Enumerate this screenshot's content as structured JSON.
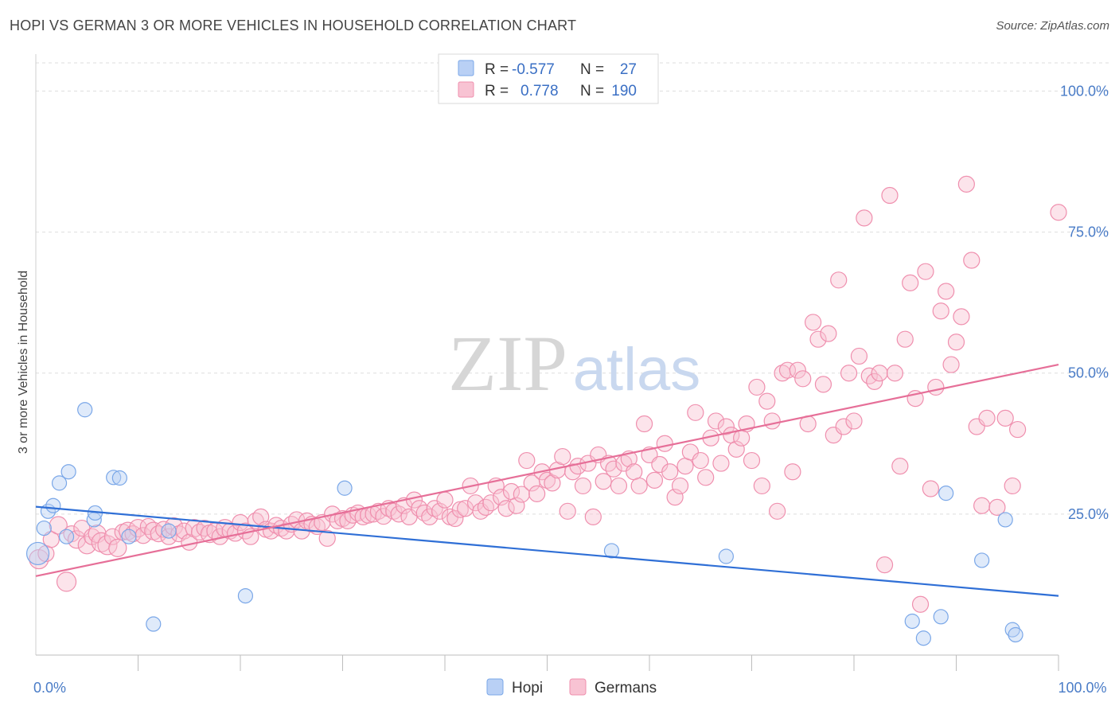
{
  "title": "HOPI VS GERMAN 3 OR MORE VEHICLES IN HOUSEHOLD CORRELATION CHART",
  "source": "Source: ZipAtlas.com",
  "watermark": {
    "zip": "ZIP",
    "atlas": "atlas"
  },
  "legend": {
    "r_label": "R =",
    "n_label": "N =",
    "rows": [
      {
        "series": "Hopi",
        "r": "-0.577",
        "n": "27",
        "color": "#7aa7e8",
        "fill": "#b9d0f5"
      },
      {
        "series": "Germans",
        "r": "0.778",
        "n": "190",
        "color": "#ef8fae",
        "fill": "#f8c3d3"
      }
    ]
  },
  "chart_data": {
    "type": "scatter",
    "title": "HOPI VS GERMAN 3 OR MORE VEHICLES IN HOUSEHOLD CORRELATION CHART",
    "xlabel": "",
    "ylabel": "3 or more Vehicles in Household",
    "xlim": [
      0,
      100
    ],
    "ylim": [
      0,
      105
    ],
    "y_ticks": [
      {
        "value": 25,
        "label": "25.0%"
      },
      {
        "value": 50,
        "label": "50.0%"
      },
      {
        "value": 75,
        "label": "75.0%"
      },
      {
        "value": 100,
        "label": "100.0%"
      }
    ],
    "x_tick_labels": [
      {
        "value": 0,
        "label": "0.0%"
      },
      {
        "value": 100,
        "label": "100.0%"
      }
    ],
    "x_minor_ticks": [
      10,
      20,
      30,
      40,
      50,
      60,
      70,
      80,
      90,
      100
    ],
    "grid": true,
    "legend_position": "top-center",
    "series": [
      {
        "name": "Hopi",
        "color": "#7aa7e8",
        "fill": "#b9d0f5",
        "line_color": "#2f6fd6",
        "trend": {
          "x": [
            0,
            100
          ],
          "y": [
            26.3,
            10.5
          ]
        },
        "points": [
          [
            0.2,
            18.0,
            14
          ],
          [
            0.8,
            22.5,
            9
          ],
          [
            1.2,
            25.5,
            9
          ],
          [
            1.7,
            26.5,
            9
          ],
          [
            2.3,
            30.5,
            9
          ],
          [
            3.0,
            21.0,
            9
          ],
          [
            3.2,
            32.5,
            9
          ],
          [
            4.8,
            43.5,
            9
          ],
          [
            5.7,
            24.0,
            9
          ],
          [
            5.8,
            25.2,
            9
          ],
          [
            7.6,
            31.5,
            9
          ],
          [
            8.2,
            31.4,
            9
          ],
          [
            9.1,
            21.0,
            9
          ],
          [
            11.5,
            5.5,
            9
          ],
          [
            13.0,
            22.0,
            9
          ],
          [
            20.5,
            10.5,
            9
          ],
          [
            30.2,
            29.6,
            9
          ],
          [
            56.3,
            18.5,
            9
          ],
          [
            67.5,
            17.5,
            9
          ],
          [
            85.7,
            6.0,
            9
          ],
          [
            86.8,
            3.0,
            9
          ],
          [
            88.5,
            6.8,
            9
          ],
          [
            89.0,
            28.7,
            9
          ],
          [
            92.5,
            16.8,
            9
          ],
          [
            94.8,
            24.0,
            9
          ],
          [
            95.5,
            4.5,
            9
          ],
          [
            95.8,
            3.6,
            9
          ]
        ]
      },
      {
        "name": "Germans",
        "color": "#ef8fae",
        "fill": "#f8c3d3",
        "line_color": "#e66f98",
        "trend": {
          "x": [
            0,
            100
          ],
          "y": [
            14.0,
            51.5
          ]
        },
        "points": [
          [
            0.3,
            17.0,
            12
          ],
          [
            1.0,
            18.0,
            10
          ],
          [
            1.5,
            20.5,
            10
          ],
          [
            2.2,
            23.0,
            11
          ],
          [
            3.0,
            13.0,
            12
          ],
          [
            3.5,
            21.5,
            10
          ],
          [
            4.0,
            20.5,
            11
          ],
          [
            4.5,
            22.5,
            10
          ],
          [
            5.0,
            19.5,
            11
          ],
          [
            5.5,
            21.0,
            10
          ],
          [
            6.0,
            21.5,
            11
          ],
          [
            6.4,
            20.0,
            12
          ],
          [
            7.0,
            19.5,
            12
          ],
          [
            7.5,
            21.0,
            10
          ],
          [
            8.0,
            19.0,
            11
          ],
          [
            8.5,
            21.8,
            10
          ],
          [
            9.0,
            22.0,
            11
          ],
          [
            9.5,
            21.5,
            10
          ],
          [
            10.0,
            22.5,
            11
          ],
          [
            10.5,
            21.2,
            10
          ],
          [
            11.0,
            22.8,
            10
          ],
          [
            11.5,
            22.0,
            11
          ],
          [
            12.0,
            21.5,
            10
          ],
          [
            12.5,
            22.3,
            10
          ],
          [
            13.0,
            21.0,
            10
          ],
          [
            13.5,
            22.8,
            11
          ],
          [
            14.0,
            21.5,
            10
          ],
          [
            14.5,
            22.0,
            10
          ],
          [
            15.0,
            20.0,
            10
          ],
          [
            15.5,
            22.5,
            11
          ],
          [
            16.0,
            21.8,
            10
          ],
          [
            16.5,
            22.5,
            10
          ],
          [
            17.0,
            21.5,
            11
          ],
          [
            17.5,
            22.0,
            10
          ],
          [
            18.0,
            21.0,
            10
          ],
          [
            18.5,
            22.5,
            11
          ],
          [
            19.0,
            22.0,
            10
          ],
          [
            19.5,
            21.6,
            10
          ],
          [
            20.0,
            23.5,
            10
          ],
          [
            20.5,
            22.0,
            10
          ],
          [
            21.0,
            21.0,
            10
          ],
          [
            21.5,
            23.8,
            10
          ],
          [
            22.0,
            24.5,
            10
          ],
          [
            22.5,
            22.3,
            10
          ],
          [
            23.0,
            22.0,
            10
          ],
          [
            23.5,
            23.0,
            10
          ],
          [
            24.0,
            22.5,
            10
          ],
          [
            24.5,
            22.0,
            10
          ],
          [
            25.0,
            23.2,
            10
          ],
          [
            25.5,
            24.0,
            10
          ],
          [
            26.0,
            22.0,
            10
          ],
          [
            26.5,
            23.8,
            10
          ],
          [
            27.0,
            23.2,
            10
          ],
          [
            27.5,
            22.8,
            10
          ],
          [
            28.0,
            23.5,
            10
          ],
          [
            28.5,
            20.7,
            10
          ],
          [
            29.0,
            25.0,
            10
          ],
          [
            29.5,
            23.8,
            10
          ],
          [
            30.0,
            24.2,
            10
          ],
          [
            30.5,
            23.8,
            10
          ],
          [
            31.0,
            24.8,
            10
          ],
          [
            31.5,
            25.2,
            10
          ],
          [
            32.0,
            24.5,
            10
          ],
          [
            32.5,
            24.8,
            10
          ],
          [
            33.0,
            25.0,
            10
          ],
          [
            33.5,
            25.5,
            10
          ],
          [
            34.0,
            24.6,
            10
          ],
          [
            34.5,
            26.0,
            10
          ],
          [
            35.0,
            25.5,
            10
          ],
          [
            35.5,
            25.0,
            10
          ],
          [
            36.0,
            26.5,
            10
          ],
          [
            36.5,
            24.5,
            10
          ],
          [
            37.0,
            27.5,
            10
          ],
          [
            37.5,
            26.0,
            10
          ],
          [
            38.0,
            25.2,
            10
          ],
          [
            38.5,
            24.5,
            10
          ],
          [
            39.0,
            26.0,
            10
          ],
          [
            39.5,
            25.5,
            10
          ],
          [
            40.0,
            27.5,
            10
          ],
          [
            40.5,
            24.5,
            10
          ],
          [
            41.0,
            24.2,
            10
          ],
          [
            41.5,
            25.8,
            10
          ],
          [
            42.0,
            26.0,
            10
          ],
          [
            42.5,
            30.0,
            10
          ],
          [
            43.0,
            27.0,
            10
          ],
          [
            43.5,
            25.5,
            10
          ],
          [
            44.0,
            26.2,
            10
          ],
          [
            44.5,
            27.0,
            10
          ],
          [
            45.0,
            30.0,
            10
          ],
          [
            45.5,
            28.0,
            10
          ],
          [
            46.0,
            26.0,
            10
          ],
          [
            46.5,
            29.0,
            10
          ],
          [
            47.0,
            26.5,
            10
          ],
          [
            47.5,
            28.5,
            10
          ],
          [
            48.0,
            34.5,
            10
          ],
          [
            48.5,
            30.5,
            10
          ],
          [
            49.0,
            28.6,
            10
          ],
          [
            49.5,
            32.5,
            10
          ],
          [
            50.0,
            31.0,
            10
          ],
          [
            50.5,
            30.5,
            10
          ],
          [
            51.0,
            32.8,
            10
          ],
          [
            51.5,
            35.2,
            10
          ],
          [
            52.0,
            25.5,
            10
          ],
          [
            52.5,
            32.5,
            10
          ],
          [
            53.0,
            33.5,
            10
          ],
          [
            53.5,
            30.0,
            10
          ],
          [
            54.0,
            34.0,
            10
          ],
          [
            54.5,
            24.5,
            10
          ],
          [
            55.0,
            35.5,
            10
          ],
          [
            55.5,
            30.8,
            10
          ],
          [
            56.0,
            34.0,
            10
          ],
          [
            56.5,
            33.0,
            10
          ],
          [
            57.0,
            30.0,
            10
          ],
          [
            57.5,
            34.0,
            10
          ],
          [
            58.0,
            34.8,
            10
          ],
          [
            58.5,
            32.5,
            10
          ],
          [
            59.0,
            30.0,
            10
          ],
          [
            59.5,
            41.0,
            10
          ],
          [
            60.0,
            35.5,
            10
          ],
          [
            60.5,
            31.0,
            10
          ],
          [
            61.0,
            33.8,
            10
          ],
          [
            61.5,
            37.5,
            10
          ],
          [
            62.0,
            32.5,
            10
          ],
          [
            62.5,
            28.0,
            10
          ],
          [
            63.0,
            30.0,
            10
          ],
          [
            63.5,
            33.5,
            10
          ],
          [
            64.0,
            36.0,
            10
          ],
          [
            64.5,
            43.0,
            10
          ],
          [
            65.0,
            34.5,
            10
          ],
          [
            65.5,
            31.5,
            10
          ],
          [
            66.0,
            38.5,
            10
          ],
          [
            66.5,
            41.5,
            10
          ],
          [
            67.0,
            34.0,
            10
          ],
          [
            67.5,
            40.5,
            10
          ],
          [
            68.0,
            39.0,
            10
          ],
          [
            68.5,
            36.5,
            10
          ],
          [
            69.0,
            38.5,
            10
          ],
          [
            69.5,
            41.0,
            10
          ],
          [
            70.0,
            34.5,
            10
          ],
          [
            70.5,
            47.5,
            10
          ],
          [
            71.0,
            30.0,
            10
          ],
          [
            71.5,
            45.0,
            10
          ],
          [
            72.0,
            41.5,
            10
          ],
          [
            72.5,
            25.5,
            10
          ],
          [
            73.0,
            50.0,
            10
          ],
          [
            73.5,
            50.5,
            10
          ],
          [
            74.0,
            32.5,
            10
          ],
          [
            74.5,
            50.5,
            10
          ],
          [
            75.0,
            49.0,
            10
          ],
          [
            75.5,
            41.0,
            10
          ],
          [
            76.0,
            59.0,
            10
          ],
          [
            76.5,
            56.0,
            10
          ],
          [
            77.0,
            48.0,
            10
          ],
          [
            77.5,
            57.0,
            10
          ],
          [
            78.0,
            39.0,
            10
          ],
          [
            78.5,
            66.5,
            10
          ],
          [
            79.0,
            40.5,
            10
          ],
          [
            79.5,
            50.0,
            10
          ],
          [
            80.0,
            41.5,
            10
          ],
          [
            80.5,
            53.0,
            10
          ],
          [
            81.0,
            77.5,
            10
          ],
          [
            81.5,
            49.5,
            10
          ],
          [
            82.0,
            48.5,
            10
          ],
          [
            82.5,
            50.0,
            10
          ],
          [
            83.0,
            16.0,
            10
          ],
          [
            83.5,
            81.5,
            10
          ],
          [
            84.0,
            50.0,
            10
          ],
          [
            84.5,
            33.5,
            10
          ],
          [
            85.0,
            56.0,
            10
          ],
          [
            85.5,
            66.0,
            10
          ],
          [
            86.0,
            45.5,
            10
          ],
          [
            86.5,
            9.0,
            10
          ],
          [
            87.0,
            68.0,
            10
          ],
          [
            87.5,
            29.5,
            10
          ],
          [
            88.0,
            47.5,
            10
          ],
          [
            88.5,
            61.0,
            10
          ],
          [
            89.0,
            64.5,
            10
          ],
          [
            89.5,
            51.5,
            10
          ],
          [
            90.0,
            55.5,
            10
          ],
          [
            90.5,
            60.0,
            10
          ],
          [
            91.0,
            83.5,
            10
          ],
          [
            91.5,
            70.0,
            10
          ],
          [
            92.0,
            40.5,
            10
          ],
          [
            92.5,
            26.5,
            10
          ],
          [
            93.0,
            42.0,
            10
          ],
          [
            100.0,
            78.5,
            10
          ],
          [
            94.0,
            26.2,
            10
          ],
          [
            94.8,
            42.0,
            10
          ],
          [
            95.5,
            30.0,
            10
          ],
          [
            96.0,
            40.0,
            10
          ]
        ]
      }
    ]
  }
}
